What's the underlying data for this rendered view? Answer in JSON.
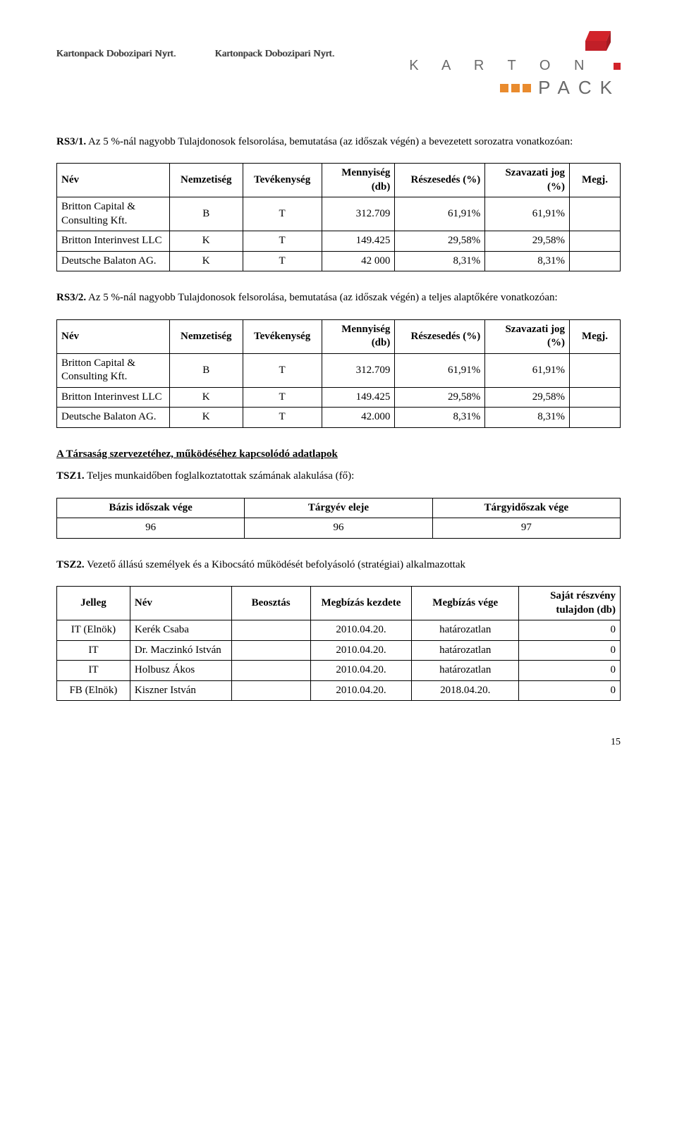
{
  "header": {
    "company_name_1": "Kartonpack Dobozipari Nyrt.",
    "company_name_2": "Kartonpack Dobozipari Nyrt.",
    "logo": {
      "word_top": "K A R T O N",
      "word_bottom": "PACK",
      "square_color": "#e98b2e",
      "accent_color": "#d2232a",
      "text_color": "#6a6a6a"
    }
  },
  "section1": {
    "code": "RS3/1.",
    "text": " Az 5 %-nál nagyobb Tulajdonosok felsorolása, bemutatása (az időszak végén) a bevezetett sorozatra vonatkozóan:",
    "columns": [
      "Név",
      "Nemzetiség",
      "Tevékenység",
      "Mennyiség (db)",
      "Részesedés (%)",
      "Szavazati jog (%)",
      "Megj."
    ],
    "rows": [
      {
        "name": "Britton Capital & Consulting Kft.",
        "nat": "B",
        "act": "T",
        "qty": "312.709",
        "share": "61,91%",
        "vote": "61,91%",
        "note": ""
      },
      {
        "name": "Britton Interinvest LLC",
        "nat": "K",
        "act": "T",
        "qty": "149.425",
        "share": "29,58%",
        "vote": "29,58%",
        "note": ""
      },
      {
        "name": "Deutsche Balaton AG.",
        "nat": "K",
        "act": "T",
        "qty": "42 000",
        "share": "8,31%",
        "vote": "8,31%",
        "note": ""
      }
    ]
  },
  "section2": {
    "code": "RS3/2.",
    "text": " Az 5 %-nál nagyobb Tulajdonosok felsorolása, bemutatása (az időszak végén) a teljes alaptőkére vonatkozóan:",
    "columns": [
      "Név",
      "Nemzetiség",
      "Tevékenység",
      "Mennyiség (db)",
      "Részesedés (%)",
      "Szavazati jog (%)",
      "Megj."
    ],
    "rows": [
      {
        "name": "Britton Capital & Consulting Kft.",
        "nat": "B",
        "act": "T",
        "qty": "312.709",
        "share": "61,91%",
        "vote": "61,91%",
        "note": ""
      },
      {
        "name": "Britton Interinvest LLC",
        "nat": "K",
        "act": "T",
        "qty": "149.425",
        "share": "29,58%",
        "vote": "29,58%",
        "note": ""
      },
      {
        "name": "Deutsche Balaton AG.",
        "nat": "K",
        "act": "T",
        "qty": "42.000",
        "share": "8,31%",
        "vote": "8,31%",
        "note": ""
      }
    ]
  },
  "section_org_heading": "A Társaság szervezetéhez, működéséhez kapcsolódó adatlapok",
  "tsz1": {
    "code": "TSZ1.",
    "text": " Teljes munkaidőben foglalkoztatottak számának alakulása (fő):",
    "columns": [
      "Bázis időszak vége",
      "Tárgyév eleje",
      "Tárgyidőszak vége"
    ],
    "row": [
      "96",
      "96",
      "97"
    ]
  },
  "tsz2": {
    "code": "TSZ2.",
    "text": " Vezető állású személyek és a Kibocsátó működését befolyásoló (stratégiai) alkalmazottak",
    "columns": [
      "Jelleg",
      "Név",
      "Beosztás",
      "Megbízás kezdete",
      "Megbízás vége",
      "Saját részvény tulajdon (db)"
    ],
    "rows": [
      {
        "type": "IT (Elnök)",
        "name": "Kerék Csaba",
        "pos": "",
        "start": "2010.04.20.",
        "end": "határozatlan",
        "shr": "0"
      },
      {
        "type": "IT",
        "name": "Dr. Maczinkó István",
        "pos": "",
        "start": "2010.04.20.",
        "end": "határozatlan",
        "shr": "0"
      },
      {
        "type": "IT",
        "name": "Holbusz Ákos",
        "pos": "",
        "start": "2010.04.20.",
        "end": "határozatlan",
        "shr": "0"
      },
      {
        "type": "FB (Elnök)",
        "name": "Kiszner István",
        "pos": "",
        "start": "2010.04.20.",
        "end": "2018.04.20.",
        "shr": "0"
      }
    ]
  },
  "page_number": "15"
}
